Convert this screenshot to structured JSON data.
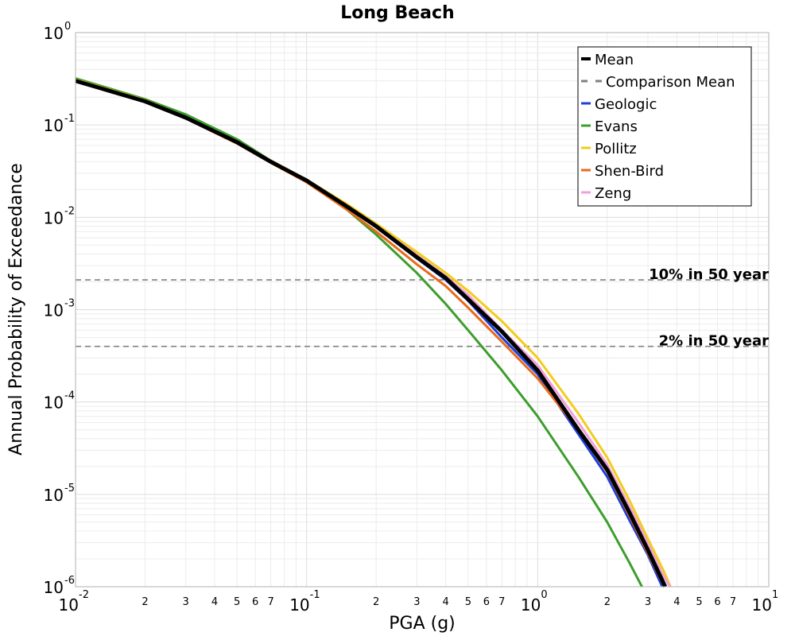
{
  "chart_data": {
    "type": "line",
    "title": "Long Beach",
    "xlabel": "PGA (g)",
    "ylabel": "Annual Probability of Exceedance",
    "xscale": "log",
    "yscale": "log",
    "xlim": [
      0.01,
      10
    ],
    "ylim": [
      1e-06,
      1
    ],
    "grid": true,
    "legend_position": "top-right",
    "x_major_ticks": [
      {
        "base": "10",
        "exp": "-2",
        "value": 0.01
      },
      {
        "base": "10",
        "exp": "-1",
        "value": 0.1
      },
      {
        "base": "10",
        "exp": "0",
        "value": 1
      },
      {
        "base": "10",
        "exp": "1",
        "value": 10
      }
    ],
    "x_minor_tick_labels": [
      "2",
      "3",
      "4",
      "5",
      "6",
      "7"
    ],
    "y_major_ticks": [
      {
        "base": "10",
        "exp": "0",
        "value": 1
      },
      {
        "base": "10",
        "exp": "-1",
        "value": 0.1
      },
      {
        "base": "10",
        "exp": "-2",
        "value": 0.01
      },
      {
        "base": "10",
        "exp": "-3",
        "value": 0.001
      },
      {
        "base": "10",
        "exp": "-4",
        "value": 0.0001
      },
      {
        "base": "10",
        "exp": "-5",
        "value": 1e-05
      },
      {
        "base": "10",
        "exp": "-6",
        "value": 1e-06
      }
    ],
    "series": [
      {
        "name": "Comparison Mean",
        "color": "#808080",
        "style": "dashed",
        "width": 2,
        "show_curve": false,
        "x": [],
        "y": []
      },
      {
        "name": "Geologic",
        "color": "#1f3fd6",
        "style": "solid",
        "width": 3,
        "x": [
          0.01,
          0.02,
          0.03,
          0.05,
          0.07,
          0.1,
          0.15,
          0.2,
          0.3,
          0.4,
          0.5,
          0.7,
          1.0,
          1.5,
          2.0,
          2.5,
          3.0,
          3.5,
          4.0
        ],
        "y": [
          0.3,
          0.18,
          0.12,
          0.065,
          0.04,
          0.025,
          0.013,
          0.0078,
          0.0036,
          0.0021,
          0.00125,
          0.0005,
          0.0002,
          4.5e-05,
          1.55e-05,
          5.2e-06,
          2.2e-06,
          9.5e-07,
          5.2e-07
        ]
      },
      {
        "name": "Evans",
        "color": "#3c9e2c",
        "style": "solid",
        "width": 3,
        "x": [
          0.01,
          0.02,
          0.03,
          0.05,
          0.07,
          0.1,
          0.15,
          0.2,
          0.3,
          0.4,
          0.5,
          0.7,
          1.0,
          1.5,
          2.0,
          2.5,
          3.0
        ],
        "y": [
          0.32,
          0.19,
          0.13,
          0.07,
          0.041,
          0.025,
          0.012,
          0.0065,
          0.0025,
          0.00115,
          0.0006,
          0.00022,
          7e-05,
          1.55e-05,
          5e-06,
          1.8e-06,
          7.5e-07
        ]
      },
      {
        "name": "Pollitz",
        "color": "#f2cc1f",
        "style": "solid",
        "width": 3,
        "x": [
          0.01,
          0.02,
          0.03,
          0.05,
          0.07,
          0.1,
          0.15,
          0.2,
          0.3,
          0.4,
          0.5,
          0.7,
          1.0,
          1.5,
          2.0,
          2.5,
          3.0,
          3.5,
          4.0,
          4.2
        ],
        "y": [
          0.31,
          0.185,
          0.122,
          0.066,
          0.041,
          0.0255,
          0.0138,
          0.0085,
          0.0042,
          0.0025,
          0.0016,
          0.00075,
          0.0003,
          7.5e-05,
          2.5e-05,
          8.5e-06,
          3.3e-06,
          1.5e-06,
          7.5e-07,
          6e-07
        ]
      },
      {
        "name": "Shen-Bird",
        "color": "#e86b1a",
        "style": "solid",
        "width": 3,
        "x": [
          0.01,
          0.02,
          0.03,
          0.05,
          0.07,
          0.1,
          0.15,
          0.2,
          0.3,
          0.4,
          0.5,
          0.7,
          1.0,
          1.5,
          2.0,
          2.5,
          3.0,
          3.5,
          4.0
        ],
        "y": [
          0.3,
          0.178,
          0.118,
          0.063,
          0.039,
          0.024,
          0.012,
          0.007,
          0.0031,
          0.0018,
          0.00105,
          0.00045,
          0.00018,
          5e-05,
          1.75e-05,
          5.8e-06,
          2.3e-06,
          1.05e-06,
          5.5e-07
        ]
      },
      {
        "name": "Zeng",
        "color": "#f0a0dc",
        "style": "solid",
        "width": 3,
        "x": [
          0.01,
          0.02,
          0.03,
          0.05,
          0.07,
          0.1,
          0.15,
          0.2,
          0.3,
          0.4,
          0.5,
          0.7,
          1.0,
          1.5,
          2.0,
          2.5,
          3.0,
          3.5,
          4.0,
          4.15
        ],
        "y": [
          0.305,
          0.182,
          0.12,
          0.065,
          0.04,
          0.025,
          0.0132,
          0.0081,
          0.0039,
          0.0023,
          0.00145,
          0.0006,
          0.00025,
          6e-05,
          2.1e-05,
          7.3e-06,
          2.9e-06,
          1.3e-06,
          6.8e-07,
          5.5e-07
        ]
      },
      {
        "name": "Mean",
        "color": "#000000",
        "style": "solid",
        "width": 5,
        "x": [
          0.01,
          0.02,
          0.03,
          0.05,
          0.07,
          0.1,
          0.15,
          0.2,
          0.3,
          0.4,
          0.5,
          0.7,
          1.0,
          1.5,
          2.0,
          2.5,
          3.0,
          3.5,
          4.0
        ],
        "y": [
          0.3,
          0.18,
          0.12,
          0.065,
          0.04,
          0.025,
          0.013,
          0.008,
          0.0037,
          0.0022,
          0.0013,
          0.00058,
          0.00022,
          5e-05,
          1.85e-05,
          6.3e-06,
          2.5e-06,
          1.1e-06,
          5.5e-07
        ]
      }
    ],
    "legend_order": [
      "Mean",
      "Comparison Mean",
      "Geologic",
      "Evans",
      "Pollitz",
      "Shen-Bird",
      "Zeng"
    ],
    "annotations": [
      {
        "label": "10% in 50 year",
        "y": 0.0021,
        "color": "#808080",
        "style": "dashed"
      },
      {
        "label": "2% in 50 year",
        "y": 0.0004,
        "color": "#808080",
        "style": "dashed"
      }
    ]
  }
}
